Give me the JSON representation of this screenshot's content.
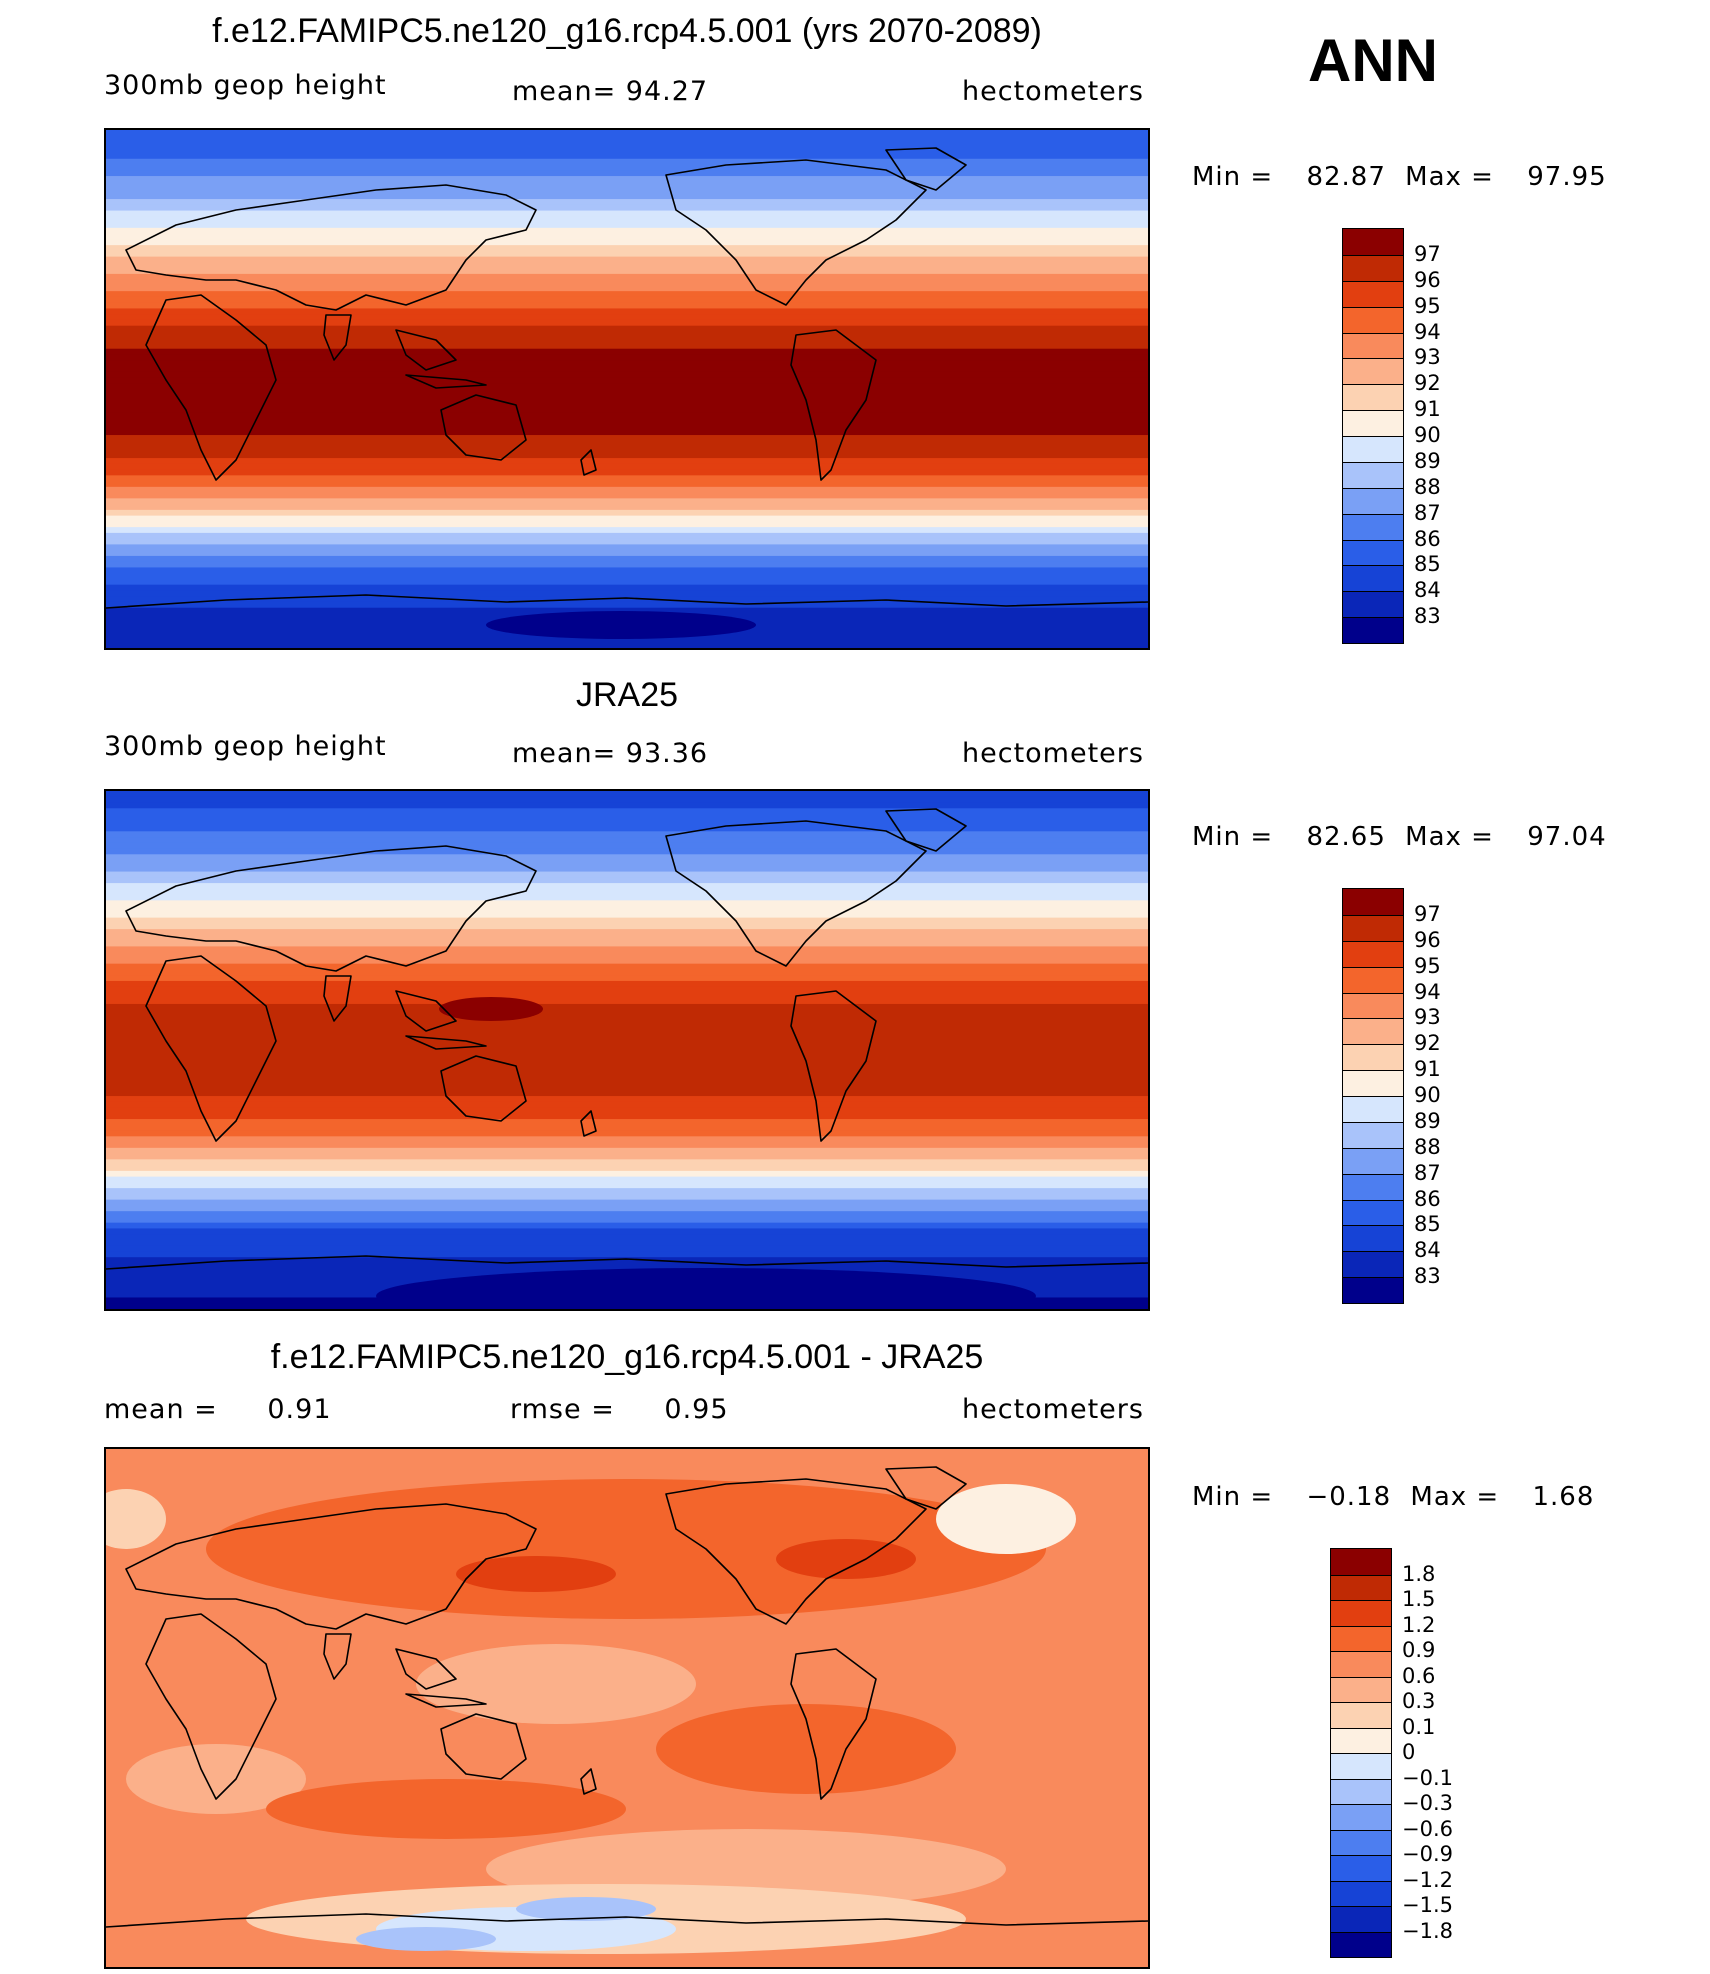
{
  "season": "ANN",
  "colors": {
    "abs_scale": [
      "#00008b",
      "#0a26b8",
      "#1643d6",
      "#2a5ee8",
      "#4d7ef0",
      "#7aa0f5",
      "#a9c3fa",
      "#d6e6fd",
      "#fdf0e1",
      "#fcd2b2",
      "#fbb08a",
      "#f98a5c",
      "#f3652c",
      "#e23f10",
      "#c02a04",
      "#8b0000"
    ],
    "diff_scale": [
      "#00008b",
      "#0a26b8",
      "#1643d6",
      "#2a5ee8",
      "#4d7ef0",
      "#7aa0f5",
      "#a9c3fa",
      "#d6e6fd",
      "#fdf0e1",
      "#fcd2b2",
      "#fbb08a",
      "#f98a5c",
      "#f3652c",
      "#e23f10",
      "#c02a04",
      "#8b0000"
    ]
  },
  "panels": [
    {
      "id": "model",
      "title": "f.e12.FAMIPC5.ne120_g16.rcp4.5.001 (yrs 2070-2089)",
      "left_label": "300mb  geop  height",
      "center_label": "mean=   94.27",
      "right_label": "hectometers",
      "min_label": "Min  =",
      "min_value": "82.87",
      "max_label": "Max  =",
      "max_value": "97.95",
      "colorbar_labels": [
        "97",
        "96",
        "95",
        "94",
        "93",
        "92",
        "91",
        "90",
        "89",
        "88",
        "87",
        "86",
        "85",
        "84",
        "83"
      ],
      "field": {
        "description_values": "zonal bands",
        "bands_north_to_south": [
          85.0,
          86.5,
          88.5,
          91.0,
          93.5,
          95.5,
          97.2,
          97.5,
          97.3,
          95.8,
          93.0,
          89.0,
          85.5,
          84.0,
          83.0
        ]
      }
    },
    {
      "id": "obs",
      "title": "JRA25",
      "left_label": "300mb  geop  height",
      "center_label": "mean=   93.36",
      "right_label": "hectometers",
      "min_label": "Min  =",
      "min_value": "82.65",
      "max_label": "Max  =",
      "max_value": "97.04",
      "colorbar_labels": [
        "97",
        "96",
        "95",
        "94",
        "93",
        "92",
        "91",
        "90",
        "89",
        "88",
        "87",
        "86",
        "85",
        "84",
        "83"
      ],
      "field": {
        "description_values": "zonal bands",
        "bands_north_to_south": [
          84.5,
          85.8,
          87.8,
          90.2,
          92.8,
          94.8,
          96.3,
          96.5,
          96.3,
          94.8,
          92.0,
          88.2,
          84.8,
          83.6,
          82.8
        ]
      }
    },
    {
      "id": "diff",
      "title": "f.e12.FAMIPC5.ne120_g16.rcp4.5.001 - JRA25",
      "left_label": "mean  =",
      "left_value": "0.91",
      "center_label": "rmse  =",
      "center_value": "0.95",
      "right_label": "hectometers",
      "min_label": "Min  =",
      "min_value": "−0.18",
      "max_label": "Max  =",
      "max_value": "1.68",
      "colorbar_labels": [
        "1.8",
        "1.5",
        "1.2",
        "0.9",
        "0.6",
        "0.3",
        "0.1",
        "0",
        "−0.1",
        "−0.3",
        "−0.6",
        "−0.9",
        "−1.2",
        "−1.5",
        "−1.8"
      ]
    }
  ]
}
